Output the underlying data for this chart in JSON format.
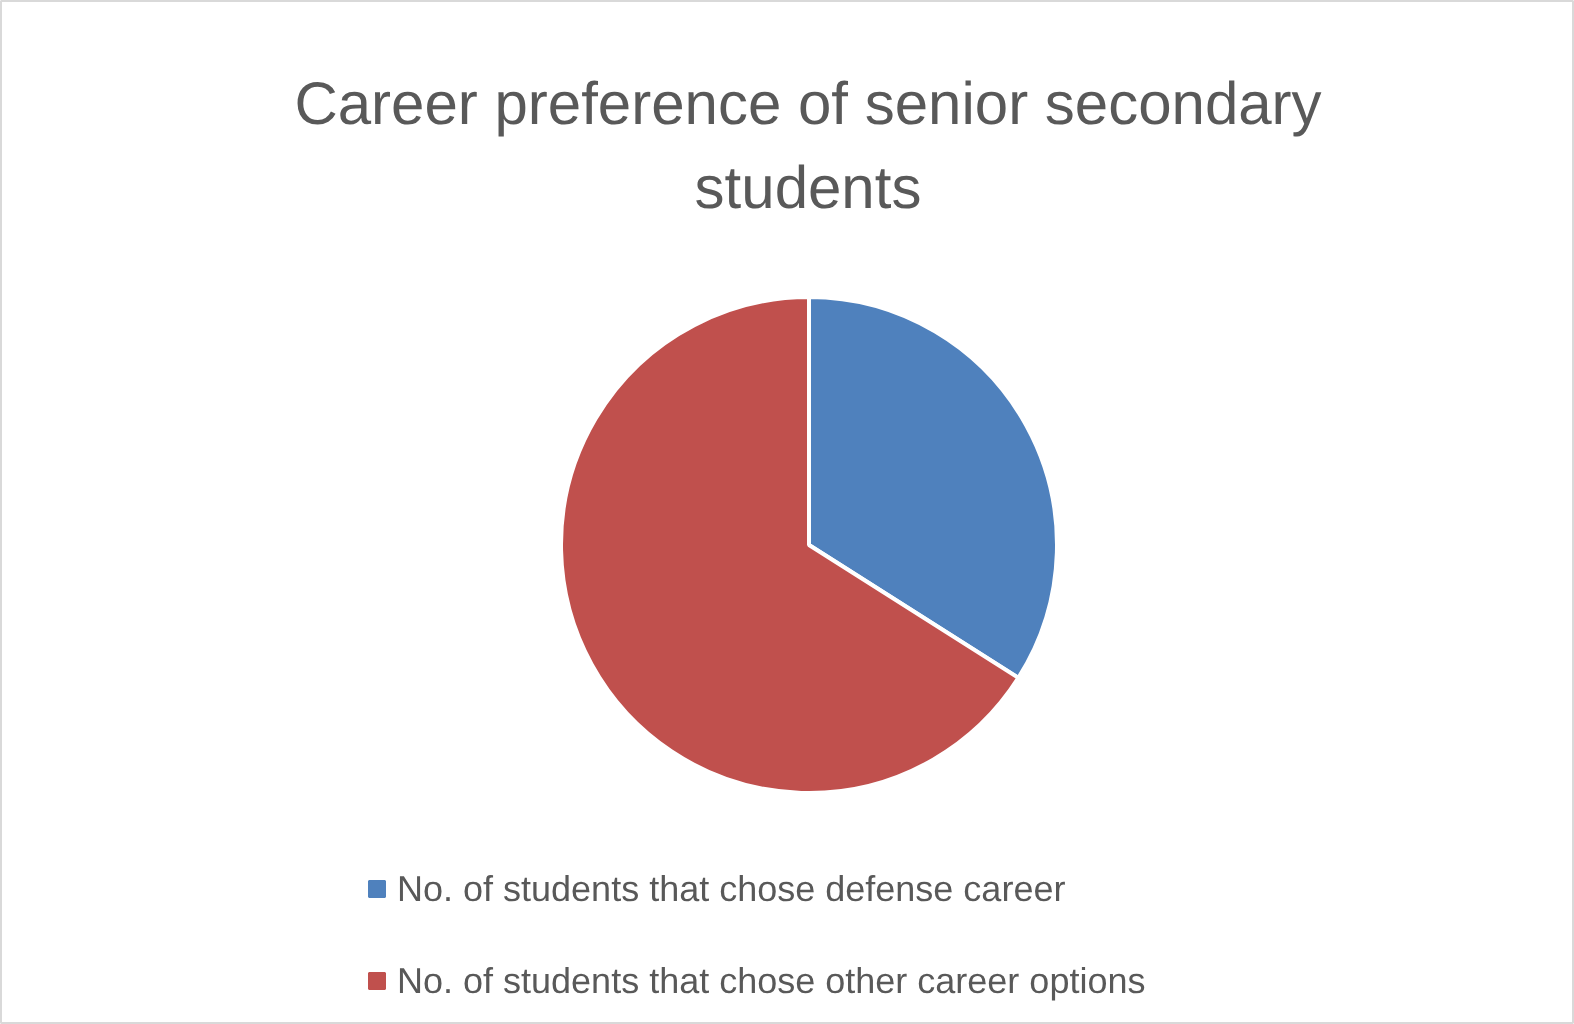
{
  "chart_data": {
    "type": "pie",
    "title": "Career preference of senior secondary students",
    "categories": [
      "No. of students that chose defense career",
      "No. of students that chose other career options"
    ],
    "values": [
      34,
      66
    ],
    "colors": [
      "#4f81bd",
      "#c0504d"
    ],
    "legend": "bottom"
  }
}
